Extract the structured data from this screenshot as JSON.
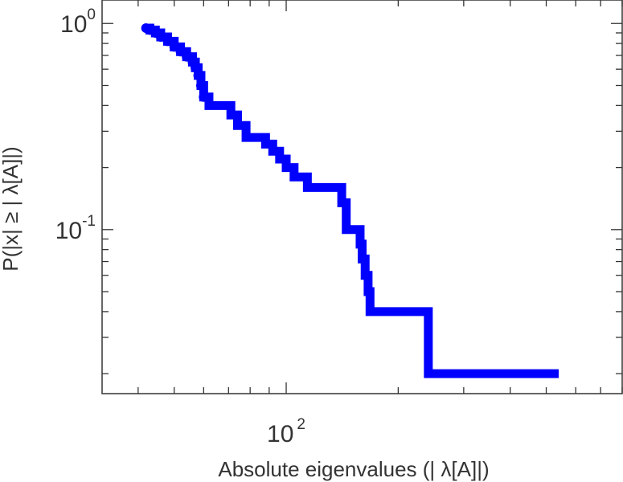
{
  "chart_data": {
    "type": "line",
    "style": "step",
    "line_color": "#0000ff",
    "marker_color": "#0000ff",
    "x_scale": "log",
    "y_scale": "log",
    "xlim": [
      32,
      800
    ],
    "ylim": [
      0.016,
      1.3
    ],
    "grid": false,
    "title": "",
    "xlabel": "Absolute eigenvalues (|     λ[A]|)",
    "ylabel": "P(|x|  ≥ | λ[A]|)",
    "x_ticks": [
      {
        "base": "10",
        "exp": "2",
        "value": 100
      }
    ],
    "y_ticks": [
      {
        "base": "10",
        "exp": "0",
        "value": 1
      },
      {
        "base": "10",
        "exp": "-1",
        "value": 0.1
      }
    ],
    "series": [
      {
        "x": [
          42.0,
          43.0,
          44.5,
          46.0,
          48.0,
          50.0,
          52.0,
          54.0,
          56.0,
          57.0,
          58.0,
          59.0,
          60.0,
          62.0,
          66.0,
          71.0,
          74.0,
          78.0,
          83.0,
          88.0,
          92.0,
          96.0,
          100.0,
          105.0,
          114.0,
          122.0,
          137.0,
          141.0,
          145.0,
          155.0,
          158.0,
          160.0,
          163.0,
          166.0,
          168.0,
          241.0,
          540.0
        ],
        "y": [
          0.95,
          0.93,
          0.9,
          0.86,
          0.82,
          0.77,
          0.73,
          0.69,
          0.65,
          0.61,
          0.56,
          0.5,
          0.44,
          0.4,
          0.4,
          0.36,
          0.32,
          0.28,
          0.28,
          0.26,
          0.24,
          0.22,
          0.2,
          0.18,
          0.16,
          0.16,
          0.16,
          0.135,
          0.1,
          0.1,
          0.085,
          0.072,
          0.06,
          0.05,
          0.04,
          0.02,
          0.02
        ]
      }
    ]
  }
}
